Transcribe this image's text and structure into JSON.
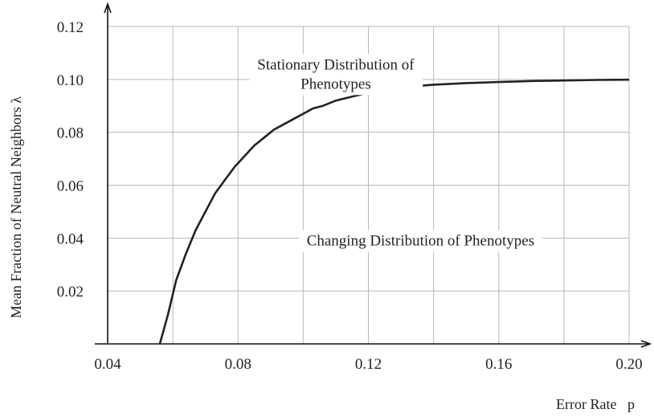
{
  "chart_data": {
    "type": "line",
    "xlabel": "Error Rate   p",
    "ylabel": "Mean Fraction of Neutral Neighbors  λ",
    "xlim": [
      0.04,
      0.2
    ],
    "ylim": [
      0.0,
      0.12
    ],
    "x_ticks": [
      0.04,
      0.06,
      0.08,
      0.1,
      0.12,
      0.14,
      0.16,
      0.18,
      0.2
    ],
    "x_tick_labels": [
      "0.04",
      "",
      "0.08",
      "",
      "0.12",
      "",
      "0.16",
      "",
      "0.20"
    ],
    "y_ticks": [
      0.0,
      0.02,
      0.04,
      0.06,
      0.08,
      0.1,
      0.12
    ],
    "y_tick_labels": [
      "",
      "0.02",
      "0.04",
      "0.06",
      "0.08",
      "0.10",
      "0.12"
    ],
    "grid": true,
    "annotations": [
      {
        "lines": [
          "Stationary Distribution of",
          "Phenotypes"
        ],
        "x": 0.11,
        "y": 0.102
      },
      {
        "lines": [
          "Changing Distribution of Phenotypes"
        ],
        "x": 0.136,
        "y": 0.039
      }
    ],
    "series": [
      {
        "x": [
          0.056,
          0.0585,
          0.061,
          0.064,
          0.067,
          0.07,
          0.073,
          0.076,
          0.079,
          0.082,
          0.085,
          0.088,
          0.091,
          0.094,
          0.097,
          0.1,
          0.103,
          0.106,
          0.11,
          0.115,
          0.12,
          0.125,
          0.13,
          0.14,
          0.15,
          0.16,
          0.17,
          0.18,
          0.19,
          0.2
        ],
        "y": [
          0.0,
          0.011,
          0.024,
          0.034,
          0.043,
          0.05,
          0.057,
          0.062,
          0.067,
          0.071,
          0.075,
          0.078,
          0.081,
          0.083,
          0.085,
          0.087,
          0.089,
          0.09,
          0.092,
          0.0935,
          0.095,
          0.096,
          0.097,
          0.098,
          0.0986,
          0.099,
          0.0994,
          0.0996,
          0.0998,
          0.0999
        ]
      }
    ]
  }
}
